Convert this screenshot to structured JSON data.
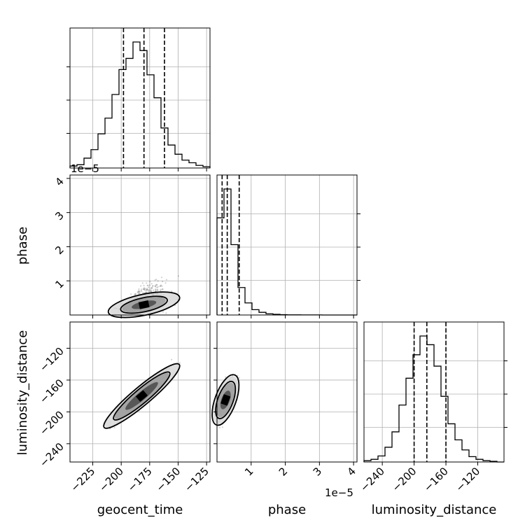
{
  "chart_data": {
    "type": "corner",
    "parameters": [
      "geocent_time",
      "phase",
      "luminosity_distance"
    ],
    "quantiles": {
      "geocent_time": [
        -198,
        -180,
        -162
      ],
      "phase": [
        1.5e-06,
        3e-06,
        6.5e-06
      ],
      "luminosity_distance": [
        -200,
        -184,
        -160
      ]
    },
    "axes": {
      "geocent_time": {
        "label": "geocent_time",
        "range": [
          -245,
          -122
        ],
        "ticks": [
          -225,
          -200,
          -175,
          -150,
          -125
        ],
        "tick_labels": [
          "−225",
          "−200",
          "−175",
          "−150",
          "−125"
        ]
      },
      "phase": {
        "label": "phase",
        "range": [
          0,
          4.1e-05
        ],
        "ticks": [
          1e-05,
          2e-05,
          3e-05,
          4e-05
        ],
        "tick_labels": [
          "1",
          "2",
          "3",
          "4"
        ],
        "offset_label": "1e−5"
      },
      "luminosity_distance": {
        "label": "luminosity_distance",
        "range": [
          -263,
          -87
        ],
        "ticks": [
          -240,
          -200,
          -160,
          -120
        ],
        "tick_labels": [
          "−240",
          "−200",
          "−160",
          "−120"
        ]
      }
    },
    "histograms": {
      "geocent_time": {
        "bin_edges": [
          -245,
          -238.85,
          -232.7,
          -226.55,
          -220.4,
          -214.25,
          -208.1,
          -201.95,
          -195.8,
          -189.65,
          -183.5,
          -177.35,
          -171.2,
          -165.05,
          -158.9,
          -152.75,
          -146.6,
          -140.45,
          -134.3,
          -128.15,
          -122
        ],
        "counts": [
          3,
          5,
          15,
          28,
          52,
          76,
          112,
          150,
          167,
          192,
          179,
          142,
          107,
          61,
          35,
          21,
          12,
          8,
          4,
          2
        ]
      },
      "phase": {
        "bin_edges": [
          0,
          2.05e-06,
          4.1e-06,
          6.15e-06,
          8.2e-06,
          1.025e-05,
          1.23e-05,
          1.435e-05,
          1.64e-05,
          1.845e-05,
          2.05e-05,
          2.255e-05,
          2.46e-05,
          2.665e-05,
          2.87e-05,
          3.075e-05,
          3.28e-05,
          3.485e-05,
          3.69e-05,
          3.895e-05,
          4.1e-05
        ],
        "counts": [
          1450,
          1880,
          1050,
          410,
          180,
          80,
          40,
          18,
          10,
          5,
          3,
          2,
          1,
          1,
          1,
          0,
          0,
          0,
          0,
          0
        ]
      },
      "luminosity_distance": {
        "bin_edges": [
          -263,
          -254.2,
          -245.4,
          -236.6,
          -227.8,
          -219,
          -210.2,
          -201.4,
          -192.6,
          -183.8,
          -175,
          -166.2,
          -157.4,
          -148.6,
          -139.8,
          -131,
          -122.2,
          -113.4,
          -104.6,
          -95.8,
          -87
        ],
        "counts": [
          2,
          4,
          9,
          22,
          45,
          85,
          125,
          160,
          188,
          175,
          143,
          98,
          57,
          33,
          18,
          8,
          4,
          2,
          1,
          0
        ]
      }
    },
    "correlations": [
      {
        "x": "geocent_time",
        "y": "phase",
        "relation": "phase increases with geocent_time",
        "density_peak": [
          -180,
          3e-06
        ]
      },
      {
        "x": "geocent_time",
        "y": "luminosity_distance",
        "relation": "luminosity_distance increases linearly with geocent_time",
        "density_peak": [
          -182,
          -180
        ]
      },
      {
        "x": "phase",
        "y": "luminosity_distance",
        "relation": "luminosity_distance increases with phase",
        "density_peak": [
          2.5e-06,
          -185
        ]
      }
    ],
    "grid": true
  }
}
